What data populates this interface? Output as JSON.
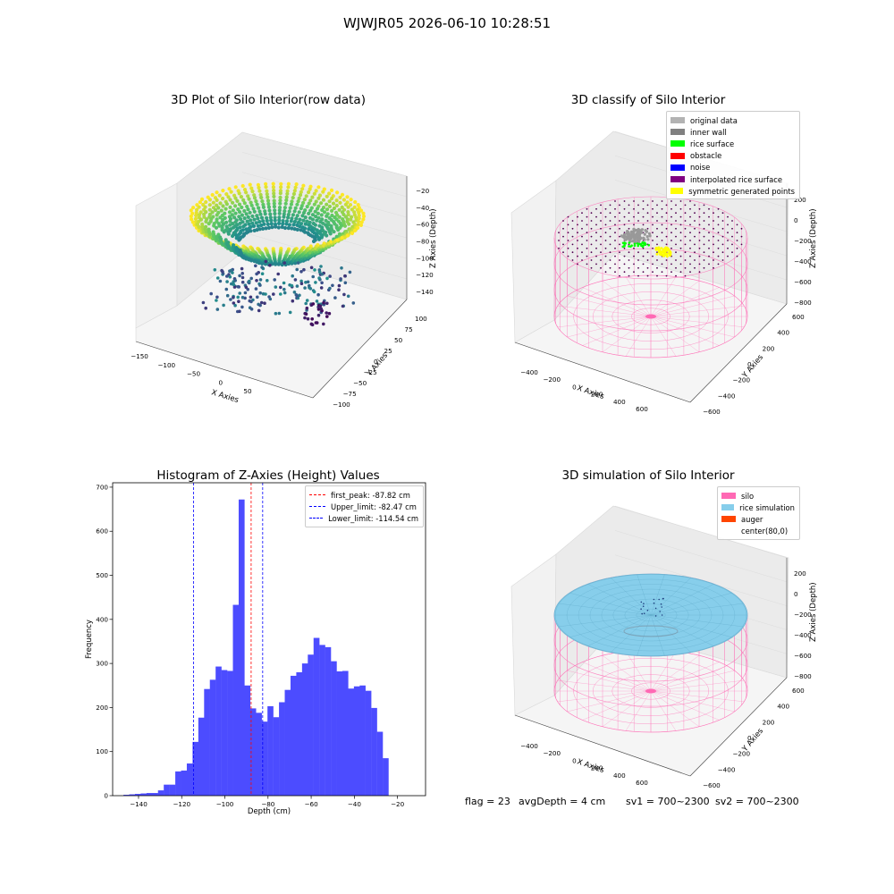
{
  "figure_title": "WJWJR05 2026-06-10 10:28:51",
  "footer": {
    "flag": "flag = 23",
    "avg_depth": "avgDepth = 4 cm",
    "sv1": "sv1 = 700~2300",
    "sv2": "sv2 = 700~2300"
  },
  "colors": {
    "histogram_bar": "#4c4cff",
    "first_peak_line": "#ff0000",
    "limit_line": "#0000ff",
    "silo": "#ff69b4",
    "rice_simulation": "#87ceeb",
    "auger": "#ff4500",
    "grid_pane": "#f2f2f2"
  },
  "chart_data": [
    {
      "type": "scatter",
      "projection": "3d",
      "title": "3D Plot of Silo Interior(row data)",
      "xlabel": "X Axies",
      "ylabel": "Y Axies",
      "zlabel": "Z Axies (Depth)",
      "x_ticks": [
        "−150",
        "−100",
        "−50",
        "0",
        "50"
      ],
      "y_ticks": [
        "−100",
        "−75",
        "−50",
        "−25",
        "0",
        "25",
        "50",
        "75",
        "100"
      ],
      "z_ticks": [
        "−140",
        "−120",
        "−100",
        "−80",
        "−60",
        "−40",
        "−20"
      ],
      "xlim": [
        -150,
        80
      ],
      "ylim": [
        -100,
        100
      ],
      "zlim": [
        -150,
        -10
      ],
      "colormap": "viridis",
      "description_hidden": "radial point cloud of silo wall scans, depth colored"
    },
    {
      "type": "scatter",
      "projection": "3d",
      "title": "3D classify of Silo Interior",
      "xlabel": "X Axies",
      "ylabel": "Y Axies",
      "zlabel": "Z Axies (Depth)",
      "x_ticks": [
        "−400",
        "−200",
        "0",
        "200",
        "400",
        "600"
      ],
      "y_ticks": [
        "−600",
        "−400",
        "−200",
        "0",
        "200",
        "400",
        "600"
      ],
      "z_ticks": [
        "−800",
        "−600",
        "−400",
        "−200",
        "0",
        "200"
      ],
      "xlim": [
        -500,
        700
      ],
      "ylim": [
        -600,
        600
      ],
      "zlim": [
        -850,
        250
      ],
      "legend": [
        {
          "label": "original data",
          "color": "#b3b3b3"
        },
        {
          "label": "inner wall",
          "color": "#808080"
        },
        {
          "label": "rice surface",
          "color": "#00ff00"
        },
        {
          "label": "obstacle",
          "color": "#ff0000"
        },
        {
          "label": "noise",
          "color": "#0000ff"
        },
        {
          "label": "interpolated rice surface",
          "color": "#800080"
        },
        {
          "label": "symmetric generated points",
          "color": "#ffff00"
        }
      ]
    },
    {
      "type": "bar",
      "title": "Histogram of Z-Axies (Height) Values",
      "xlabel": "Depth (cm)",
      "ylabel": "Frequency",
      "xlim": [
        -152,
        -7
      ],
      "ylim": [
        0,
        710
      ],
      "x_ticks": [
        -140,
        -120,
        -100,
        -80,
        -60,
        -40,
        -20
      ],
      "y_ticks": [
        0,
        100,
        200,
        300,
        400,
        500,
        600,
        700
      ],
      "bin_start": -147,
      "bin_width": 2.67,
      "values": [
        2,
        3,
        4,
        5,
        6,
        6,
        12,
        25,
        25,
        55,
        57,
        73,
        122,
        177,
        242,
        263,
        293,
        285,
        283,
        433,
        672,
        250,
        198,
        188,
        168,
        203,
        178,
        212,
        240,
        272,
        280,
        300,
        320,
        358,
        342,
        337,
        305,
        282,
        283,
        243,
        248,
        250,
        238,
        199,
        145,
        85
      ],
      "lines": [
        {
          "label": "first_peak: -87.82 cm",
          "x": -87.82,
          "color": "#ff0000"
        },
        {
          "label": "Upper_limit: -82.47 cm",
          "x": -82.47,
          "color": "#0000ff"
        },
        {
          "label": "Lower_limit: -114.54 cm",
          "x": -114.54,
          "color": "#0000ff"
        }
      ],
      "legend_position": "upper right"
    },
    {
      "type": "surface",
      "projection": "3d",
      "title": "3D simulation of Silo Interior",
      "xlabel": "X Axies",
      "ylabel": "Y Axies",
      "zlabel": "Z Axies (Depth)",
      "x_ticks": [
        "−400",
        "−200",
        "0",
        "200",
        "400",
        "600"
      ],
      "y_ticks": [
        "−600",
        "−400",
        "−200",
        "0",
        "200",
        "400",
        "600"
      ],
      "z_ticks": [
        "−800",
        "−600",
        "−400",
        "−200",
        "0",
        "200"
      ],
      "xlim": [
        -500,
        700
      ],
      "ylim": [
        -600,
        600
      ],
      "zlim": [
        -850,
        250
      ],
      "legend": [
        {
          "label": "silo",
          "color": "#ff69b4"
        },
        {
          "label": "rice simulation",
          "color": "#87ceeb"
        },
        {
          "label": "auger",
          "color": "#ff4500"
        },
        {
          "label": "center(80,0)",
          "color": ""
        }
      ]
    }
  ]
}
